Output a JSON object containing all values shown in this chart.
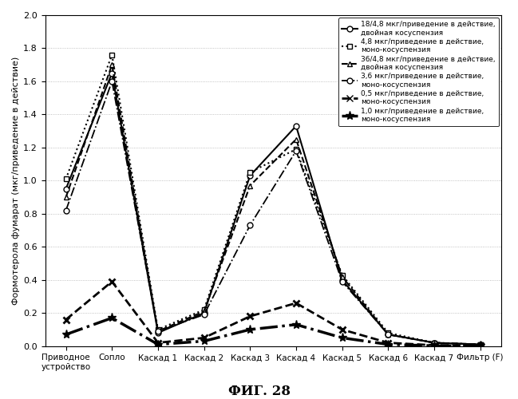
{
  "x_labels": [
    "Приводное\nустройство",
    "Сопло",
    "Каскад 1",
    "Каскад 2",
    "Каскад 3",
    "Каскад 4",
    "Каскад 5",
    "Каскад 6",
    "Каскад 7",
    "Фильтр (F)"
  ],
  "series": [
    {
      "label": "18/4,8 мкг/приведение в действие,\nдвойная косуспензия",
      "values": [
        0.95,
        1.65,
        0.08,
        0.2,
        1.03,
        1.33,
        0.4,
        0.07,
        0.02,
        0.01
      ]
    },
    {
      "label": "4,8 мкг/приведение в действие,\nмоно-косуспензия",
      "values": [
        1.01,
        1.76,
        0.1,
        0.22,
        1.05,
        1.19,
        0.43,
        0.08,
        0.02,
        0.01
      ]
    },
    {
      "label": "36/4,8 мкг/приведение в действие,\nдвойная косуспензия",
      "values": [
        0.9,
        1.7,
        0.09,
        0.21,
        0.97,
        1.25,
        0.42,
        0.07,
        0.02,
        0.01
      ]
    },
    {
      "label": "3,6 мкг/приведение в действие,\nмоно-косуспензия",
      "values": [
        0.82,
        1.6,
        0.09,
        0.19,
        0.73,
        1.18,
        0.39,
        0.07,
        0.02,
        0.01
      ]
    },
    {
      "label": "0,5 мкг/приведение в действие,\nмоно-косуспензия",
      "values": [
        0.16,
        0.39,
        0.02,
        0.05,
        0.18,
        0.26,
        0.1,
        0.02,
        0.005,
        0.003
      ]
    },
    {
      "label": "1,0 мкг/приведение в действие,\nмоно-косуспензия",
      "values": [
        0.07,
        0.17,
        0.01,
        0.03,
        0.1,
        0.13,
        0.05,
        0.01,
        0.002,
        0.001
      ]
    }
  ],
  "ylabel": "Формотерола фумарат (мкг/приведение в действие)",
  "ylim": [
    0,
    2
  ],
  "yticks": [
    0,
    0.2,
    0.4,
    0.6,
    0.8,
    1.0,
    1.2,
    1.4,
    1.6,
    1.8,
    2.0
  ],
  "title_below": "ФИГ. 28",
  "background_color": "#ffffff",
  "grid_color": "#b0b0b0"
}
